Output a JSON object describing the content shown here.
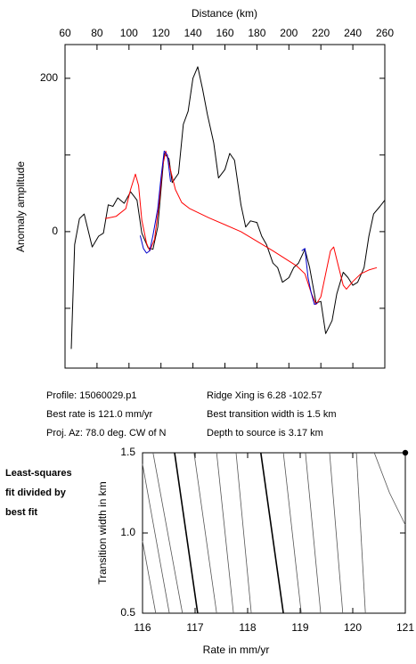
{
  "chart_data": [
    {
      "type": "line",
      "xlabel": "Distance (km)",
      "ylabel": "Anomaly amplitude",
      "xlim": [
        60,
        260
      ],
      "xticks": [
        60,
        80,
        100,
        120,
        140,
        160,
        180,
        200,
        220,
        240,
        260
      ],
      "ylim": [
        -178,
        244
      ],
      "yticks": [
        0,
        200
      ],
      "minor_yticks": [
        -100,
        100
      ],
      "series": [
        {
          "color": "#000000",
          "x": [
            63.9,
            66,
            69,
            72,
            77,
            81,
            84,
            87,
            90,
            93,
            97,
            101,
            105,
            108,
            112,
            115,
            118,
            122,
            125,
            127,
            131,
            134,
            137,
            140,
            143,
            146,
            149,
            153,
            156,
            160,
            163,
            166,
            170,
            173,
            176,
            180,
            183,
            186,
            190,
            193,
            196,
            200,
            203,
            206,
            210,
            213,
            217,
            220,
            223,
            227,
            230,
            234,
            237,
            240,
            243,
            247,
            250,
            253,
            257,
            260
          ],
          "values": [
            -153,
            -17,
            17,
            23,
            -20,
            -6,
            -2,
            35,
            33,
            44,
            37,
            52,
            41,
            -2,
            -21,
            -23,
            6,
            102,
            95,
            64,
            76,
            140,
            157,
            200,
            215,
            186,
            153,
            116,
            70,
            81,
            102,
            93,
            35,
            6,
            14,
            12,
            -6,
            -17,
            -41,
            -47,
            -66,
            -60,
            -47,
            -41,
            -23,
            -47,
            -93,
            -91,
            -133,
            -116,
            -81,
            -53,
            -60,
            -70,
            -66,
            -47,
            -6,
            23,
            33,
            41
          ]
        },
        {
          "color": "#ff0000",
          "x": [
            85,
            92,
            98,
            101,
            104,
            106,
            108,
            111,
            113,
            116,
            119,
            121,
            123,
            126,
            129,
            133,
            138,
            150,
            170,
            190,
            205,
            210,
            214,
            217,
            220,
            223,
            226,
            228,
            231,
            234,
            236,
            240,
            245,
            250,
            255
          ],
          "values": [
            17,
            20,
            30,
            55,
            75,
            60,
            15,
            -15,
            -25,
            -10,
            40,
            85,
            105,
            80,
            55,
            38,
            30,
            18,
            0,
            -25,
            -45,
            -55,
            -80,
            -95,
            -85,
            -55,
            -25,
            -20,
            -45,
            -70,
            -75,
            -65,
            -55,
            -50,
            -47
          ]
        },
        {
          "color": "#0000cc",
          "x": [
            107,
            109,
            111,
            113,
            115,
            118,
            120,
            122,
            124,
            126,
            167,
            208,
            210,
            212,
            214,
            216,
            218
          ],
          "values": [
            -5,
            -22,
            -28,
            -25,
            -5,
            30,
            70,
            105,
            100,
            65,
            null,
            -25,
            -22,
            -60,
            -80,
            -95,
            -93
          ]
        }
      ]
    },
    {
      "type": "contour",
      "xlabel": "Rate in mm/yr",
      "ylabel": "Transition width in km",
      "annotation": [
        "Least-squares",
        "fit divided by",
        "best fit"
      ],
      "xlim": [
        116,
        121
      ],
      "xticks": [
        116,
        117,
        118,
        119,
        120,
        121
      ],
      "ylim": [
        0.5,
        1.5
      ],
      "yticks": [
        0.5,
        {
          "value": 1,
          "label": "1.0"
        },
        1.5
      ],
      "color": "#555555",
      "bold_color": "#000000",
      "series": [
        {
          "x": [
            116,
            116.25
          ],
          "values": [
            0.95,
            0.5
          ]
        },
        {
          "x": [
            116,
            116.51
          ],
          "values": [
            1.43,
            0.5
          ]
        },
        {
          "x": [
            116.2,
            116.76
          ],
          "values": [
            1.5,
            0.5
          ]
        },
        {
          "x": [
            116.61,
            117.05
          ],
          "values": [
            1.5,
            0.5
          ],
          "bold": true
        },
        {
          "x": [
            116.98,
            117.41
          ],
          "values": [
            1.5,
            0.5
          ]
        },
        {
          "x": [
            117.41,
            117.73
          ],
          "values": [
            1.5,
            0.5
          ]
        },
        {
          "x": [
            117.78,
            118.07
          ],
          "values": [
            1.5,
            0.5
          ]
        },
        {
          "x": [
            118.25,
            118.68
          ],
          "values": [
            1.5,
            0.5
          ],
          "bold": true
        },
        {
          "x": [
            118.68,
            119.02
          ],
          "values": [
            1.5,
            0.5
          ]
        },
        {
          "x": [
            119.1,
            119.39
          ],
          "values": [
            1.5,
            0.5
          ]
        },
        {
          "x": [
            119.56,
            119.81
          ],
          "values": [
            1.5,
            0.5
          ]
        },
        {
          "x": [
            120.07,
            120.24
          ],
          "values": [
            1.5,
            0.5
          ]
        },
        {
          "x": [
            120.41,
            120.7,
            121
          ],
          "values": [
            1.5,
            1.25,
            1.05
          ]
        }
      ],
      "best": {
        "x": 121,
        "y": 1.5
      }
    }
  ],
  "profile_info": [
    "Profile: 15060029.p1",
    "Ridge Xing is 6.28 -102.57",
    "Best rate is 121.0 mm/yr",
    "Best transition width is 1.5 km",
    "Proj. Az: 78.0 deg. CW of N",
    "Depth to source is   3.17 km"
  ]
}
